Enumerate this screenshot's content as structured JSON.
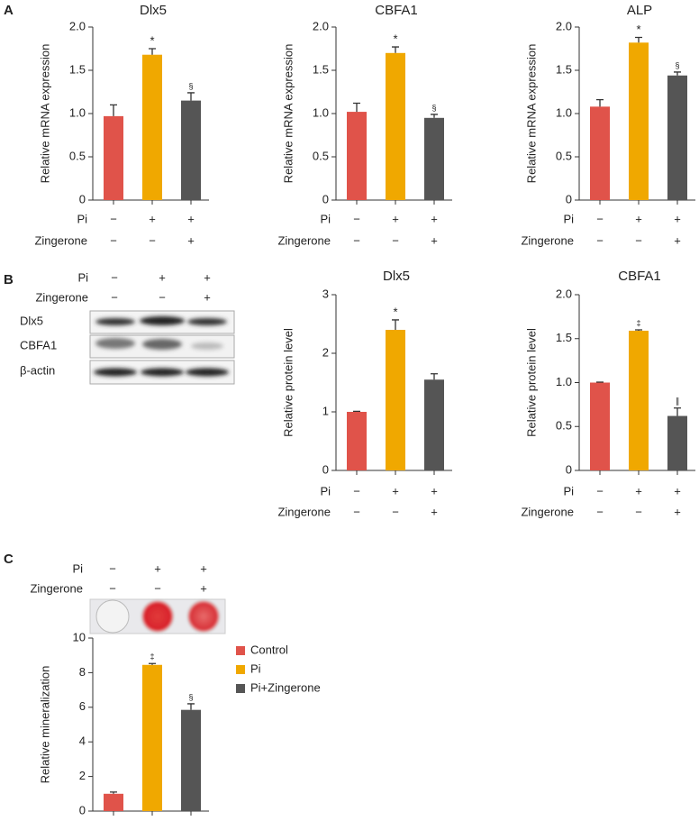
{
  "panels": [
    "A",
    "B",
    "C"
  ],
  "western_blot": {
    "treatments": [
      {
        "label": "Pi",
        "marks": [
          "−",
          "+",
          "+"
        ]
      },
      {
        "label": "Zingerone",
        "marks": [
          "−",
          "−",
          "+"
        ]
      }
    ],
    "bands": [
      "Dlx5",
      "CBFA1",
      "β-actin"
    ]
  },
  "staining": {
    "treatments": [
      {
        "label": "Pi",
        "marks": [
          "−",
          "+",
          "+"
        ]
      },
      {
        "label": "Zingerone",
        "marks": [
          "−",
          "−",
          "+"
        ]
      }
    ]
  },
  "chart_data": [
    {
      "type": "bar",
      "title": "Dlx5",
      "ylabel": "Relative mRNA expression",
      "categories": [
        null,
        null,
        null
      ],
      "values": [
        0.97,
        1.68,
        1.15
      ],
      "errors": [
        0.13,
        0.07,
        0.09
      ],
      "annotations": [
        null,
        "*",
        "§"
      ],
      "colors": [
        "#e0534a",
        "#f0a800",
        "#555555"
      ],
      "ylim": [
        0,
        2
      ],
      "yticks": [
        0,
        0.5,
        {
          "value": 1,
          "label": "1.0"
        },
        1.5,
        {
          "value": 2,
          "label": "2.0"
        }
      ],
      "treatments": [
        {
          "label": "Pi",
          "marks": [
            "−",
            "+",
            "+"
          ]
        },
        {
          "label": "Zingerone",
          "marks": [
            "−",
            "−",
            "+"
          ]
        }
      ]
    },
    {
      "type": "bar",
      "title": "CBFA1",
      "ylabel": "Relative mRNA expression",
      "categories": [
        null,
        null,
        null
      ],
      "values": [
        1.02,
        1.7,
        0.95
      ],
      "errors": [
        0.1,
        0.07,
        0.04
      ],
      "annotations": [
        null,
        "*",
        "§"
      ],
      "colors": [
        "#e0534a",
        "#f0a800",
        "#555555"
      ],
      "ylim": [
        0,
        2
      ],
      "yticks": [
        0,
        0.5,
        {
          "value": 1,
          "label": "1.0"
        },
        1.5,
        {
          "value": 2,
          "label": "2.0"
        }
      ],
      "treatments": [
        {
          "label": "Pi",
          "marks": [
            "−",
            "+",
            "+"
          ]
        },
        {
          "label": "Zingerone",
          "marks": [
            "−",
            "−",
            "+"
          ]
        }
      ]
    },
    {
      "type": "bar",
      "title": "ALP",
      "ylabel": "Relative mRNA expression",
      "categories": [
        null,
        null,
        null
      ],
      "values": [
        1.08,
        1.82,
        1.44
      ],
      "errors": [
        0.08,
        0.06,
        0.04
      ],
      "annotations": [
        null,
        "*",
        "§"
      ],
      "colors": [
        "#e0534a",
        "#f0a800",
        "#555555"
      ],
      "ylim": [
        0,
        2
      ],
      "yticks": [
        0,
        0.5,
        {
          "value": 1,
          "label": "1.0"
        },
        1.5,
        {
          "value": 2,
          "label": "2.0"
        }
      ],
      "treatments": [
        {
          "label": "Pi",
          "marks": [
            "−",
            "+",
            "+"
          ]
        },
        {
          "label": "Zingerone",
          "marks": [
            "−",
            "−",
            "+"
          ]
        }
      ]
    },
    {
      "type": "bar",
      "title": "Dlx5",
      "ylabel": "Relative protein level",
      "categories": [
        null,
        null,
        null
      ],
      "values": [
        1.0,
        2.4,
        1.55
      ],
      "errors": [
        0.01,
        0.17,
        0.1
      ],
      "annotations": [
        null,
        "*",
        null
      ],
      "colors": [
        "#e0534a",
        "#f0a800",
        "#555555"
      ],
      "ylim": [
        0,
        3
      ],
      "yticks": [
        0,
        1,
        2,
        3
      ],
      "treatments": [
        {
          "label": "Pi",
          "marks": [
            "−",
            "+",
            "+"
          ]
        },
        {
          "label": "Zingerone",
          "marks": [
            "−",
            "−",
            "+"
          ]
        }
      ]
    },
    {
      "type": "bar",
      "title": "CBFA1",
      "ylabel": "Relative protein level",
      "categories": [
        null,
        null,
        null
      ],
      "values": [
        1.0,
        1.59,
        0.62
      ],
      "errors": [
        0.005,
        0.01,
        0.09
      ],
      "annotations": [
        null,
        "‡",
        "∥"
      ],
      "colors": [
        "#e0534a",
        "#f0a800",
        "#555555"
      ],
      "ylim": [
        0,
        2
      ],
      "yticks": [
        0,
        0.5,
        {
          "value": 1,
          "label": "1.0"
        },
        1.5,
        {
          "value": 2,
          "label": "2.0"
        }
      ],
      "treatments": [
        {
          "label": "Pi",
          "marks": [
            "−",
            "+",
            "+"
          ]
        },
        {
          "label": "Zingerone",
          "marks": [
            "−",
            "−",
            "+"
          ]
        }
      ]
    },
    {
      "type": "bar",
      "ylabel": "Relative mineralization",
      "categories": [
        null,
        null,
        null
      ],
      "values": [
        1.0,
        8.45,
        5.85
      ],
      "errors": [
        0.1,
        0.08,
        0.35
      ],
      "annotations": [
        null,
        "‡",
        "§"
      ],
      "colors": [
        "#e0534a",
        "#f0a800",
        "#555555"
      ],
      "legend": [
        "Control",
        "Pi",
        "Pi+Zingerone"
      ],
      "ylim": [
        0,
        10
      ],
      "yticks": [
        0,
        2,
        4,
        6,
        8,
        10
      ]
    }
  ]
}
